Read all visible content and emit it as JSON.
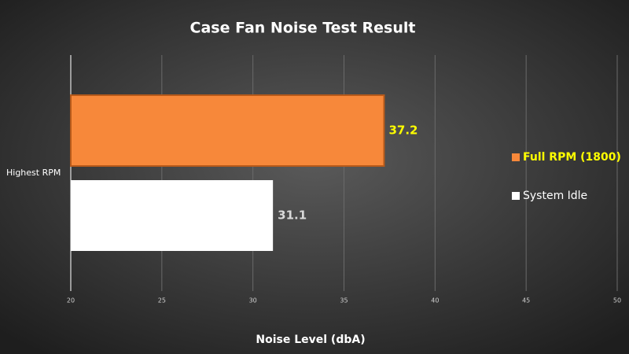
{
  "chart_data": {
    "type": "bar",
    "orientation": "horizontal",
    "title": "Case Fan Noise Test Result",
    "x_label": "Noise Level (dbA)",
    "categories": [
      "Highest RPM"
    ],
    "series": [
      {
        "name": "Full RPM (1800)",
        "color": "#f7883a",
        "label_color": "#ffff00",
        "values": [
          37.2
        ]
      },
      {
        "name": "System Idle",
        "color": "#ffffff",
        "label_color": "#d9d9d9",
        "values": [
          31.1
        ]
      }
    ],
    "xlim": [
      20,
      50
    ],
    "xticks": [
      20,
      25,
      30,
      35,
      40,
      45,
      50
    ],
    "grid": true,
    "legend": "right"
  }
}
